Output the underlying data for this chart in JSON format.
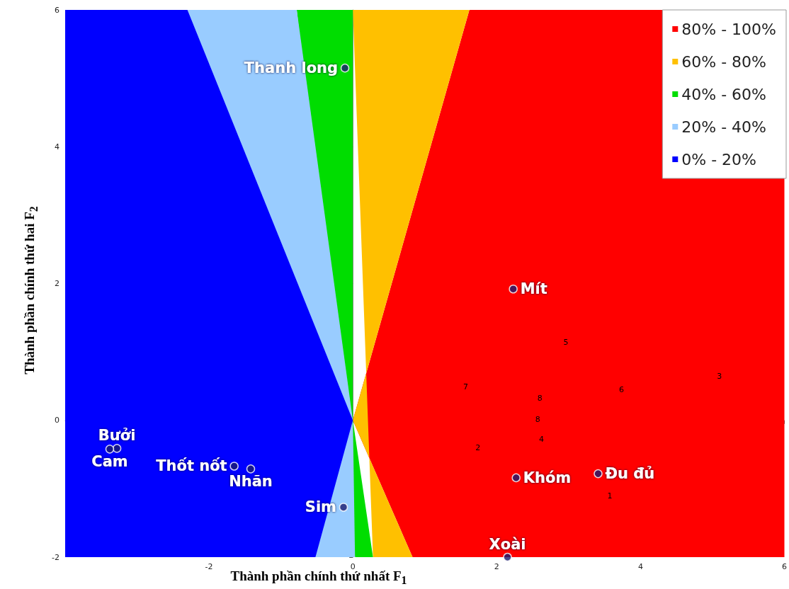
{
  "chart_data": {
    "type": "scatter",
    "xlabel": "Thành phần chính thứ nhất F$_{1}$",
    "ylabel": "Thành phần chính thứ hai F$_{2}$",
    "xlim": [
      -4,
      6
    ],
    "ylim": [
      -2,
      6
    ],
    "xticks": [
      -2,
      0,
      2,
      4,
      6
    ],
    "yticks": [
      -2,
      0,
      2,
      4,
      6
    ],
    "legend": "top right",
    "series": [
      {
        "type": "area",
        "name": "80% - 100%",
        "color": "#ff0000",
        "x": [
          1.62,
          6,
          6,
          0.83,
          0
        ],
        "values": [
          6,
          6,
          -2,
          -2,
          0
        ]
      },
      {
        "type": "area",
        "name": "60% - 80%",
        "color": "#ffc000",
        "x": [
          0,
          1.62,
          0,
          0.83,
          0.28
        ],
        "values": [
          6,
          6,
          0,
          -2,
          -2
        ]
      },
      {
        "type": "area",
        "name": "40% - 60%",
        "color": "#00dd00",
        "x": [
          -0.78,
          0,
          0,
          0.28,
          0.03
        ],
        "values": [
          6,
          6,
          0,
          -2,
          -2
        ]
      },
      {
        "type": "area",
        "name": "20% - 40%",
        "color": "#99ccff",
        "x": [
          -2.3,
          -0.78,
          0,
          0.03,
          -0.52
        ],
        "values": [
          6,
          6,
          0,
          -2,
          -2
        ]
      },
      {
        "type": "area",
        "name": "0% - 20%",
        "color": "#0000ff",
        "x": [
          -4,
          -2.3,
          0,
          -0.52,
          -4
        ],
        "values": [
          6,
          6,
          0,
          -2,
          -2
        ]
      },
      {
        "marker": "circle",
        "color": "#1c1c70",
        "x": [
          -0.11,
          2.23,
          2.27,
          3.41,
          2.15,
          -0.13,
          -1.65,
          -1.42,
          -3.28,
          -3.38
        ],
        "values": [
          5.15,
          1.92,
          -0.84,
          -0.78,
          -2.0,
          -1.27,
          -0.67,
          -0.71,
          -0.41,
          -0.42
        ]
      }
    ],
    "annotations": [
      {
        "text": "Thanh long",
        "x": -0.11,
        "y": 5.15
      },
      {
        "text": "Mít",
        "x": 2.23,
        "y": 1.92
      },
      {
        "text": "Khóm",
        "x": 2.27,
        "y": -0.84
      },
      {
        "text": "Đu đủ",
        "x": 3.41,
        "y": -0.78
      },
      {
        "text": "Xoài",
        "x": 2.15,
        "y": -2.0
      },
      {
        "text": "Sim",
        "x": -0.13,
        "y": -1.27
      },
      {
        "text": "Thốt nốt",
        "x": -1.65,
        "y": -0.67
      },
      {
        "text": "Nhãn",
        "x": -1.42,
        "y": -0.71
      },
      {
        "text": "Bưởi",
        "x": -3.28,
        "y": -0.41
      },
      {
        "text": "Cam",
        "x": -3.38,
        "y": -0.42
      },
      "5",
      "3",
      "7",
      "6",
      "8",
      "8",
      "4",
      "2",
      "1"
    ]
  }
}
